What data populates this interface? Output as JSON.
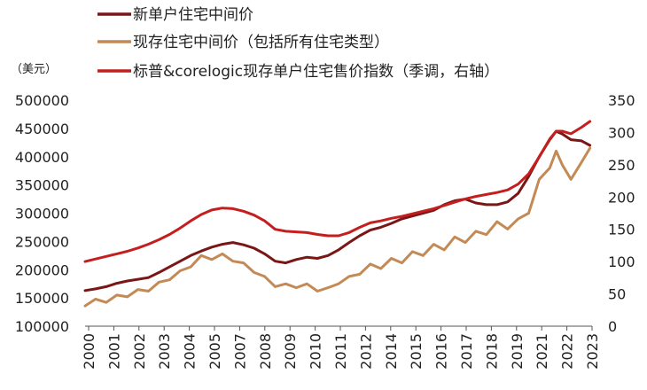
{
  "chart_data": {
    "type": "line",
    "title": "",
    "unit_label": "（美元）",
    "x_ticks": [
      "2000",
      "2001",
      "2002",
      "2003",
      "2004",
      "2005",
      "2007",
      "2008",
      "2009",
      "2010",
      "2011",
      "2012",
      "2014",
      "2015",
      "2016",
      "2017",
      "2018",
      "2019",
      "2021",
      "2022",
      "2023"
    ],
    "y_left": {
      "ticks": [
        100000,
        150000,
        200000,
        250000,
        300000,
        350000,
        400000,
        450000,
        500000
      ],
      "range": [
        100000,
        500000
      ]
    },
    "y_right": {
      "ticks": [
        0,
        50,
        100,
        150,
        200,
        250,
        300,
        350
      ],
      "range": [
        0,
        350
      ]
    },
    "x_range": [
      2000.0,
      2024.0
    ],
    "legend_position": "top",
    "grid": false,
    "series": [
      {
        "name": "新单户住宅中间价",
        "color": "#7a1616",
        "axis": "left",
        "x": [
          2000.0,
          2000.5,
          2001.0,
          2001.5,
          2002.0,
          2002.5,
          2003.0,
          2003.5,
          2004.0,
          2004.5,
          2005.0,
          2005.5,
          2006.0,
          2006.5,
          2007.0,
          2007.5,
          2008.0,
          2008.5,
          2009.0,
          2009.5,
          2010.0,
          2010.5,
          2011.0,
          2011.5,
          2012.0,
          2012.5,
          2013.0,
          2013.5,
          2014.0,
          2014.5,
          2015.0,
          2015.5,
          2016.0,
          2016.5,
          2017.0,
          2017.5,
          2018.0,
          2018.5,
          2019.0,
          2019.5,
          2020.0,
          2020.5,
          2021.0,
          2021.5,
          2022.0,
          2022.3,
          2022.6,
          2023.0,
          2023.5,
          2023.9
        ],
        "values": [
          163000,
          166000,
          170000,
          176000,
          180000,
          183000,
          186000,
          195000,
          205000,
          215000,
          225000,
          233000,
          240000,
          245000,
          248000,
          244000,
          238000,
          228000,
          215000,
          212000,
          218000,
          222000,
          220000,
          225000,
          235000,
          248000,
          260000,
          270000,
          275000,
          282000,
          290000,
          295000,
          300000,
          305000,
          315000,
          322000,
          325000,
          318000,
          315000,
          315000,
          320000,
          335000,
          365000,
          400000,
          430000,
          445000,
          440000,
          430000,
          428000,
          420000
        ]
      },
      {
        "name": "现存住宅中间价（包括所有住宅类型）",
        "color": "#c48a55",
        "axis": "left",
        "x": [
          2000.0,
          2000.5,
          2001.0,
          2001.5,
          2002.0,
          2002.5,
          2003.0,
          2003.5,
          2004.0,
          2004.5,
          2005.0,
          2005.5,
          2006.0,
          2006.5,
          2007.0,
          2007.5,
          2008.0,
          2008.5,
          2009.0,
          2009.5,
          2010.0,
          2010.5,
          2011.0,
          2011.5,
          2012.0,
          2012.5,
          2013.0,
          2013.5,
          2014.0,
          2014.5,
          2015.0,
          2015.5,
          2016.0,
          2016.5,
          2017.0,
          2017.5,
          2018.0,
          2018.5,
          2019.0,
          2019.5,
          2020.0,
          2020.5,
          2021.0,
          2021.5,
          2022.0,
          2022.3,
          2022.6,
          2023.0,
          2023.5,
          2023.9
        ],
        "values": [
          136000,
          148000,
          142000,
          155000,
          152000,
          165000,
          162000,
          178000,
          182000,
          198000,
          205000,
          225000,
          218000,
          228000,
          215000,
          212000,
          195000,
          188000,
          170000,
          175000,
          168000,
          175000,
          162000,
          168000,
          175000,
          188000,
          192000,
          210000,
          202000,
          220000,
          212000,
          232000,
          225000,
          245000,
          235000,
          258000,
          248000,
          268000,
          262000,
          285000,
          272000,
          290000,
          300000,
          360000,
          380000,
          410000,
          385000,
          360000,
          390000,
          415000
        ]
      },
      {
        "name": "标普&corelogic现存单户住宅售价指数（季调，右轴）",
        "color": "#c41e1e",
        "axis": "right",
        "x": [
          2000.0,
          2000.5,
          2001.0,
          2001.5,
          2002.0,
          2002.5,
          2003.0,
          2003.5,
          2004.0,
          2004.5,
          2005.0,
          2005.5,
          2006.0,
          2006.5,
          2007.0,
          2007.5,
          2008.0,
          2008.5,
          2009.0,
          2009.5,
          2010.0,
          2010.5,
          2011.0,
          2011.5,
          2012.0,
          2012.5,
          2013.0,
          2013.5,
          2014.0,
          2014.5,
          2015.0,
          2015.5,
          2016.0,
          2016.5,
          2017.0,
          2017.5,
          2018.0,
          2018.5,
          2019.0,
          2019.5,
          2020.0,
          2020.5,
          2021.0,
          2021.5,
          2022.0,
          2022.3,
          2022.6,
          2023.0,
          2023.5,
          2023.9
        ],
        "values": [
          100,
          104,
          108,
          112,
          116,
          121,
          127,
          134,
          142,
          152,
          163,
          173,
          180,
          183,
          182,
          178,
          172,
          163,
          150,
          147,
          146,
          145,
          142,
          140,
          140,
          145,
          153,
          160,
          163,
          167,
          170,
          174,
          178,
          182,
          187,
          192,
          197,
          201,
          204,
          207,
          211,
          220,
          236,
          262,
          290,
          302,
          302,
          298,
          308,
          317
        ]
      }
    ]
  }
}
